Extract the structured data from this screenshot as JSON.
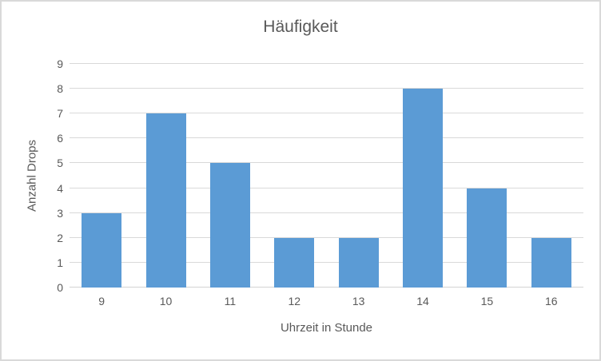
{
  "chart_data": {
    "type": "bar",
    "title": "Häufigkeit",
    "xlabel": "Uhrzeit in Stunde",
    "ylabel": "Anzahl Drops",
    "categories": [
      "9",
      "10",
      "11",
      "12",
      "13",
      "14",
      "15",
      "16"
    ],
    "values": [
      3,
      7,
      5,
      2,
      2,
      8,
      4,
      2
    ],
    "ylim": [
      0,
      9
    ],
    "ytick_step": 1,
    "grid": true,
    "legend_position": "none",
    "colors": {
      "bar": "#5b9bd5",
      "gridline": "#d9d9d9",
      "axis_line": "#d3d3d3",
      "text": "#595959",
      "frame_border": "#d9d9d9",
      "background": "#ffffff"
    }
  }
}
